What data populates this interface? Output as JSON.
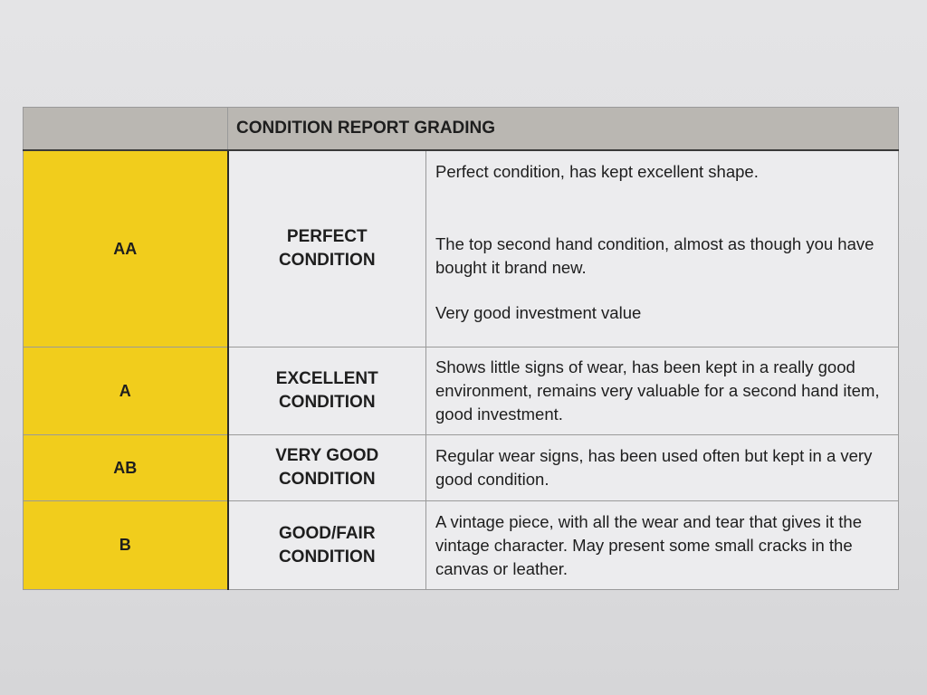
{
  "table": {
    "title": "CONDITION REPORT GRADING",
    "rows": [
      {
        "grade": "AA",
        "condition": "PERFECT CONDITION",
        "description": [
          "Perfect condition, has kept excellent shape.",
          "The top second hand condition, almost as though you have bought it brand new.",
          "Very good investment value"
        ]
      },
      {
        "grade": "A",
        "condition": "EXCELLENT CONDITION",
        "description": [
          "Shows little signs of wear, has been kept in a really good environment, remains very valuable for a second hand item, good investment."
        ]
      },
      {
        "grade": "AB",
        "condition": "VERY GOOD CONDITION",
        "description": [
          "Regular wear signs, has been used often but kept in a very good condition."
        ]
      },
      {
        "grade": "B",
        "condition": "GOOD/FAIR CONDITION",
        "description": [
          "A vintage piece, with all the wear and tear that gives it the vintage character. May present some small cracks in the canvas or leather."
        ]
      }
    ]
  },
  "colors": {
    "grade_column": "#f1cd1c",
    "header": "#bab7b2"
  }
}
